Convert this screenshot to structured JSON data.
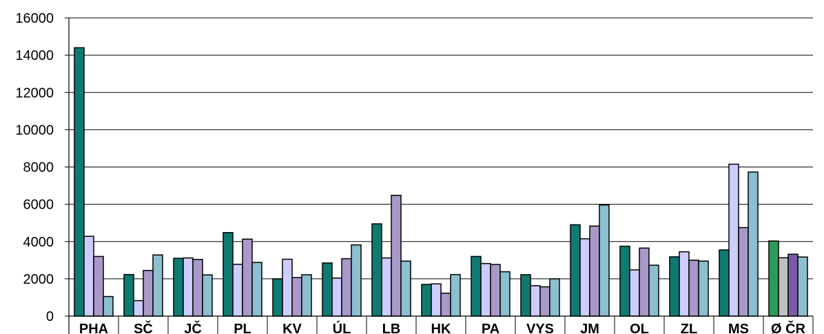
{
  "chart_data": {
    "type": "bar",
    "title": "",
    "xlabel": "",
    "ylabel": "",
    "ylim": [
      0,
      16000
    ],
    "yticks": [
      0,
      2000,
      4000,
      6000,
      8000,
      10000,
      12000,
      14000,
      16000
    ],
    "ytick_labels": [
      "0",
      "2000",
      "4000",
      "6000",
      "8000",
      "10000",
      "12000",
      "14000",
      "16000"
    ],
    "grid": true,
    "legend": "none",
    "categories": [
      "PHA",
      "SČ",
      "JČ",
      "PL",
      "KV",
      "ÚL",
      "LB",
      "HK",
      "PA",
      "VYS",
      "JM",
      "OL",
      "ZL",
      "MS",
      "Ø ČR"
    ],
    "series": [
      {
        "color": "#0e7a72",
        "values": [
          14400,
          2230,
          3100,
          4480,
          2000,
          2850,
          4950,
          1700,
          3200,
          2220,
          4900,
          3750,
          3180,
          3550,
          4030
        ]
      },
      {
        "color": "#ccccff",
        "values": [
          4280,
          830,
          3120,
          2780,
          3050,
          2040,
          3120,
          1730,
          2820,
          1630,
          4150,
          2480,
          3450,
          8150,
          3130
        ]
      },
      {
        "color": "#a899c9",
        "values": [
          3200,
          2450,
          3040,
          4130,
          2070,
          3080,
          6480,
          1230,
          2770,
          1570,
          4830,
          3650,
          3000,
          4750,
          3320
        ]
      },
      {
        "color": "#8cbfcf",
        "values": [
          1050,
          3280,
          2210,
          2880,
          2220,
          3820,
          2950,
          2230,
          2380,
          2000,
          5960,
          2730,
          2950,
          7730,
          3170
        ]
      }
    ],
    "last_category_colors": [
      "#2e9a5a",
      "#c0c0c0",
      "#7a5ca6",
      "#8cbfcf"
    ]
  }
}
